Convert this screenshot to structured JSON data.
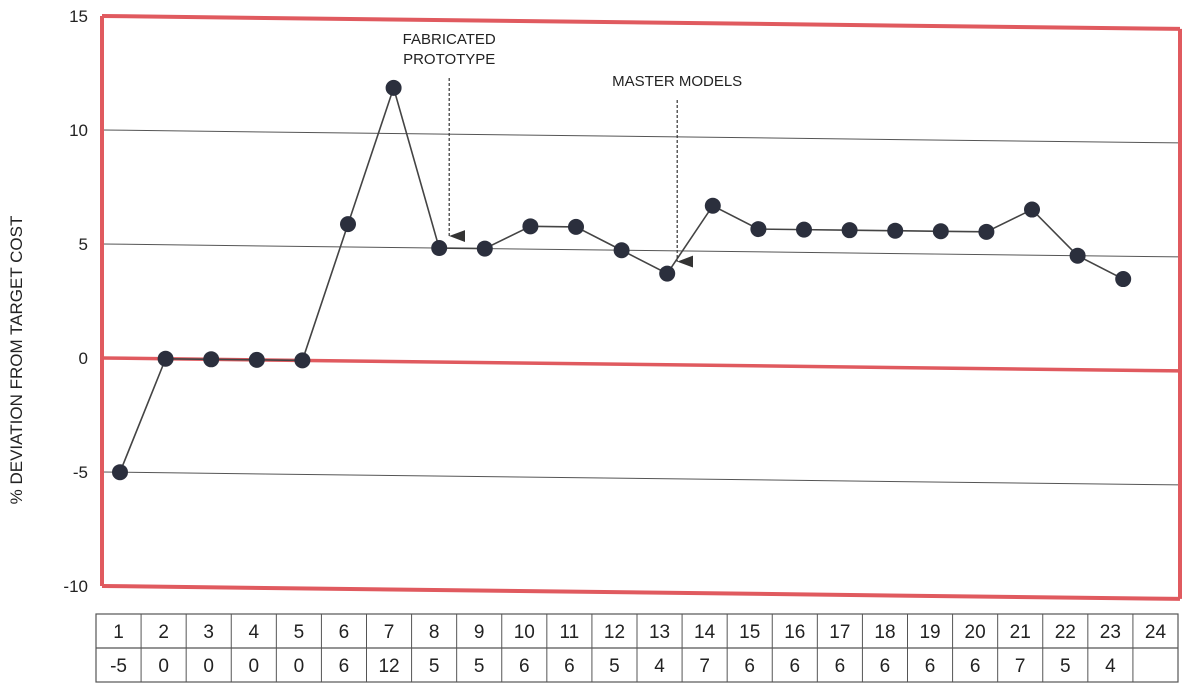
{
  "chart_data": {
    "type": "line",
    "ylabel": "% DEVIATION FROM TARGET COST",
    "ylim": [
      -10,
      15
    ],
    "yticks": [
      -10,
      -5,
      0,
      5,
      10,
      15
    ],
    "grid": true,
    "x": [
      1,
      2,
      3,
      4,
      5,
      6,
      7,
      8,
      9,
      10,
      11,
      12,
      13,
      14,
      15,
      16,
      17,
      18,
      19,
      20,
      21,
      22,
      23,
      24
    ],
    "values": [
      -5,
      0,
      0,
      0,
      0,
      6,
      12,
      5,
      5,
      6,
      6,
      5,
      4,
      7,
      6,
      6,
      6,
      6,
      6,
      6,
      7,
      5,
      4,
      null
    ],
    "annotations": [
      {
        "lines": [
          "FABRICATED",
          "PROTOTYPE"
        ],
        "x": 8
      },
      {
        "lines": [
          "MASTER MODELS"
        ],
        "x": 13
      }
    ],
    "table": {
      "row1": [
        "1",
        "2",
        "3",
        "4",
        "5",
        "6",
        "7",
        "8",
        "9",
        "10",
        "11",
        "12",
        "13",
        "14",
        "15",
        "16",
        "17",
        "18",
        "19",
        "20",
        "21",
        "22",
        "23",
        "24"
      ],
      "row2": [
        "-5",
        "0",
        "0",
        "0",
        "0",
        "6",
        "12",
        "5",
        "5",
        "6",
        "6",
        "5",
        "4",
        "7",
        "6",
        "6",
        "6",
        "6",
        "6",
        "6",
        "7",
        "5",
        "4",
        ""
      ]
    },
    "colors": {
      "frame": "#e05a5f",
      "marker": "#2b2f3d",
      "line": "#444444",
      "grid": "#555555"
    }
  }
}
